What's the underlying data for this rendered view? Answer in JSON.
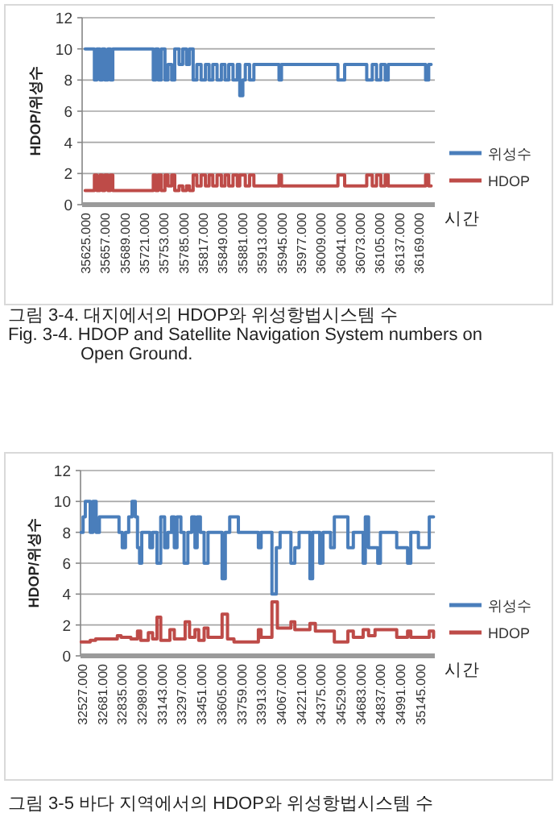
{
  "chart_data": [
    {
      "type": "step",
      "xlabel": "시간",
      "ylabel": "HDOP/위성수",
      "xlim": [
        35620,
        36195
      ],
      "ylim": [
        0,
        12
      ],
      "yticks": [
        0,
        2,
        4,
        6,
        8,
        10,
        12
      ],
      "xticks": [
        {
          "value": 35625,
          "label": "35625.000"
        },
        {
          "value": 35657,
          "label": "35657.000"
        },
        {
          "value": 35689,
          "label": "35689.000"
        },
        {
          "value": 35721,
          "label": "35721.000"
        },
        {
          "value": 35753,
          "label": "35753.000"
        },
        {
          "value": 35785,
          "label": "35785.000"
        },
        {
          "value": 35817,
          "label": "35817.000"
        },
        {
          "value": 35849,
          "label": "35849.000"
        },
        {
          "value": 35881,
          "label": "35881.000"
        },
        {
          "value": 35913,
          "label": "35913.000"
        },
        {
          "value": 35945,
          "label": "35945.000"
        },
        {
          "value": 35977,
          "label": "35977.000"
        },
        {
          "value": 36009,
          "label": "36009.000"
        },
        {
          "value": 36041,
          "label": "36041.000"
        },
        {
          "value": 36073,
          "label": "36073.000"
        },
        {
          "value": 36105,
          "label": "36105.000"
        },
        {
          "value": 36137,
          "label": "36137.000"
        },
        {
          "value": 36169,
          "label": "36169.000"
        }
      ],
      "grid": "y",
      "legend": "right",
      "line_style": "solid",
      "series": [
        {
          "name": "위성수",
          "color": "#4a7ebb",
          "x": [
            35625,
            35640,
            35644,
            35649,
            35653,
            35657,
            35662,
            35666,
            35670,
            35736,
            35740,
            35744,
            35749,
            35755,
            35760,
            35766,
            35771,
            35778,
            35784,
            35790,
            35795,
            35801,
            35807,
            35814,
            35821,
            35827,
            35833,
            35840,
            35847,
            35853,
            35859,
            35866,
            35873,
            35877,
            35882,
            35886,
            35893,
            35900,
            35941,
            35945,
            36037,
            36048,
            36084,
            36093,
            36100,
            36107,
            36114,
            36119,
            36180,
            36185,
            36189
          ],
          "values": [
            10,
            8,
            10,
            8,
            10,
            8,
            10,
            8,
            10,
            8,
            10,
            8,
            10,
            8,
            9,
            8,
            10,
            9,
            10,
            9,
            10,
            8,
            9,
            8,
            9,
            8,
            9,
            8,
            9,
            8,
            9,
            8,
            9,
            7,
            8,
            9,
            8,
            9,
            8,
            9,
            8,
            9,
            8,
            9,
            8,
            9,
            8,
            9,
            8,
            9,
            9
          ]
        },
        {
          "name": "HDOP",
          "color": "#be4b48",
          "x": [
            35625,
            35640,
            35644,
            35649,
            35653,
            35657,
            35662,
            35666,
            35670,
            35736,
            35740,
            35744,
            35749,
            35755,
            35760,
            35766,
            35771,
            35778,
            35784,
            35790,
            35795,
            35801,
            35807,
            35814,
            35821,
            35827,
            35833,
            35840,
            35847,
            35853,
            35859,
            35866,
            35873,
            35877,
            35882,
            35886,
            35893,
            35900,
            35941,
            35945,
            36037,
            36048,
            36084,
            36093,
            36100,
            36107,
            36114,
            36119,
            36180,
            36185,
            36189
          ],
          "values": [
            0.9,
            1.9,
            0.9,
            1.9,
            0.9,
            1.9,
            0.9,
            1.9,
            0.9,
            1.9,
            0.9,
            1.9,
            0.9,
            1.9,
            1.2,
            1.9,
            0.9,
            1.2,
            0.9,
            1.2,
            0.9,
            1.9,
            1.2,
            1.9,
            1.2,
            1.9,
            1.2,
            1.9,
            1.2,
            1.9,
            1.2,
            1.9,
            1.2,
            1.9,
            1.9,
            1.2,
            1.9,
            1.2,
            1.9,
            1.2,
            1.9,
            1.2,
            1.9,
            1.2,
            1.9,
            1.2,
            1.9,
            1.2,
            1.9,
            1.2,
            1.2
          ]
        }
      ],
      "annotations": [
        "그림 3-4. 대지에서의 HDOP와 위성항법시스템 수",
        "Fig. 3-4. HDOP and Satellite Navigation System numbers on Open Ground."
      ]
    },
    {
      "type": "step",
      "xlabel": "시간",
      "ylabel": "HDOP/위성수",
      "xlim": [
        32515,
        35258
      ],
      "ylim": [
        0,
        12
      ],
      "yticks": [
        0,
        2,
        4,
        6,
        8,
        10,
        12
      ],
      "xticks": [
        {
          "value": 32527,
          "label": "32527.000"
        },
        {
          "value": 32681,
          "label": "32681.000"
        },
        {
          "value": 32835,
          "label": "32835.000"
        },
        {
          "value": 32989,
          "label": "32989.000"
        },
        {
          "value": 33143,
          "label": "33143.000"
        },
        {
          "value": 33297,
          "label": "33297.000"
        },
        {
          "value": 33451,
          "label": "33451.000"
        },
        {
          "value": 33605,
          "label": "33605.000"
        },
        {
          "value": 33759,
          "label": "33759.000"
        },
        {
          "value": 33913,
          "label": "33913.000"
        },
        {
          "value": 34067,
          "label": "34067.000"
        },
        {
          "value": 34221,
          "label": "34221.000"
        },
        {
          "value": 34375,
          "label": "34375.000"
        },
        {
          "value": 34529,
          "label": "34529.000"
        },
        {
          "value": 34683,
          "label": "34683.000"
        },
        {
          "value": 34837,
          "label": "34837.000"
        },
        {
          "value": 34991,
          "label": "34991.000"
        },
        {
          "value": 35145,
          "label": "35145.000"
        }
      ],
      "grid": "y",
      "legend": "right",
      "line_style": "solid",
      "series": [
        {
          "name": "위성수",
          "color": "#4a7ebb",
          "x": [
            32520,
            32535,
            32552,
            32590,
            32611,
            32636,
            32661,
            32813,
            32838,
            32863,
            32888,
            32914,
            32939,
            32956,
            32972,
            32989,
            33052,
            33073,
            33107,
            33136,
            33166,
            33191,
            33220,
            33241,
            33262,
            33292,
            33317,
            33346,
            33376,
            33401,
            33418,
            33443,
            33472,
            33502,
            33611,
            33636,
            33670,
            33737,
            33892,
            33913,
            33997,
            34031,
            34060,
            34144,
            34174,
            34207,
            34291,
            34312,
            34367,
            34392,
            34451,
            34480,
            34585,
            34627,
            34703,
            34720,
            34745,
            34816,
            34837,
            34963,
            35047,
            35072,
            35131,
            35215,
            35248
          ],
          "values": [
            8,
            9,
            10,
            8,
            10,
            8,
            9,
            8,
            7,
            8,
            9,
            10,
            9,
            7,
            6,
            8,
            7,
            8,
            6,
            9,
            7,
            8,
            9,
            7,
            9,
            8,
            6,
            8,
            9,
            7,
            9,
            8,
            6,
            8,
            5,
            8,
            9,
            8,
            7,
            8,
            4,
            7,
            8,
            6,
            7,
            8,
            5,
            8,
            6,
            8,
            7,
            9,
            7,
            8,
            6,
            9,
            7,
            6,
            8,
            7,
            6,
            8,
            7,
            9,
            9
          ]
        },
        {
          "name": "HDOP",
          "color": "#be4b48",
          "x": [
            32520,
            32590,
            32632,
            32800,
            32829,
            32905,
            32956,
            32981,
            33040,
            33073,
            33107,
            33136,
            33207,
            33241,
            33325,
            33359,
            33401,
            33430,
            33472,
            33502,
            33611,
            33653,
            33703,
            33892,
            33913,
            33997,
            34039,
            34144,
            34174,
            34291,
            34333,
            34480,
            34585,
            34627,
            34703,
            34745,
            34795,
            34963,
            35047,
            35072,
            35215,
            35248
          ],
          "values": [
            0.9,
            1.0,
            1.1,
            1.3,
            1.2,
            1.1,
            1.6,
            1.0,
            1.5,
            1.1,
            2.5,
            1.0,
            1.7,
            1.1,
            2.2,
            1.2,
            1.7,
            1.0,
            1.8,
            1.2,
            2.7,
            1.1,
            0.9,
            1.7,
            1.2,
            3.5,
            1.8,
            2.2,
            1.7,
            2.1,
            1.6,
            0.9,
            1.6,
            1.2,
            1.7,
            1.3,
            1.7,
            1.2,
            1.6,
            1.2,
            1.6,
            1.2
          ]
        }
      ],
      "annotations": [
        "그림 3-5 바다 지역에서의 HDOP와 위성항법시스템 수"
      ]
    }
  ]
}
